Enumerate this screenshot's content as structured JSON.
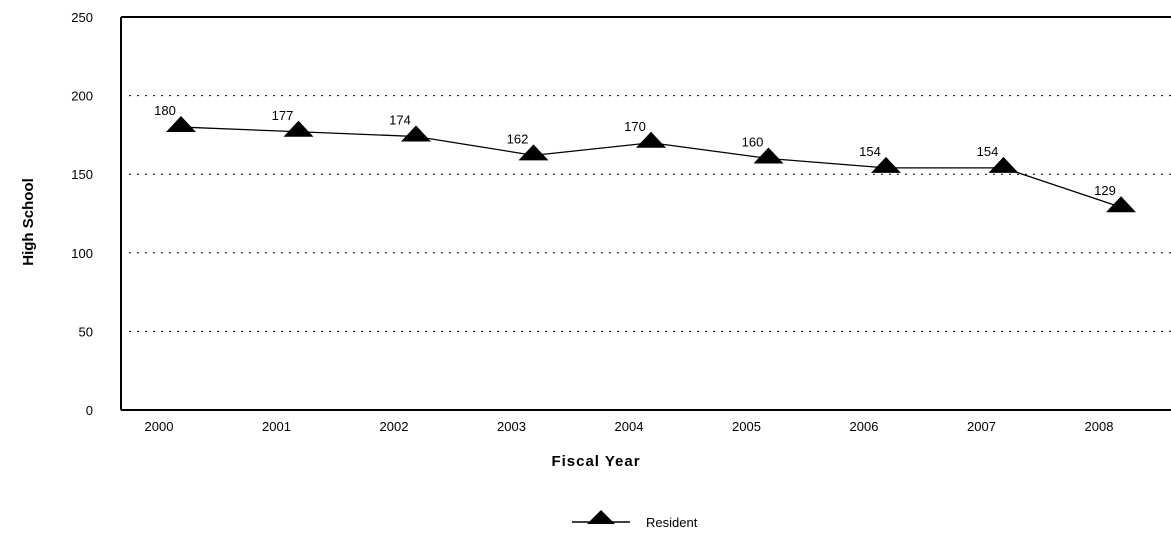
{
  "chart_data": {
    "type": "line",
    "title": "",
    "xlabel": "Fiscal Year",
    "ylabel": "High School",
    "categories": [
      "2000",
      "2001",
      "2002",
      "2003",
      "2004",
      "2005",
      "2006",
      "2007",
      "2008"
    ],
    "ylim": [
      0,
      250
    ],
    "yticks": [
      "0",
      "50",
      "100",
      "150",
      "200",
      "250"
    ],
    "grid": true,
    "legend_position": "bottom",
    "series": [
      {
        "name": "Resident",
        "values": [
          180,
          177,
          174,
          162,
          170,
          160,
          154,
          154,
          129
        ],
        "marker": "triangle",
        "color": "#000000"
      }
    ]
  }
}
